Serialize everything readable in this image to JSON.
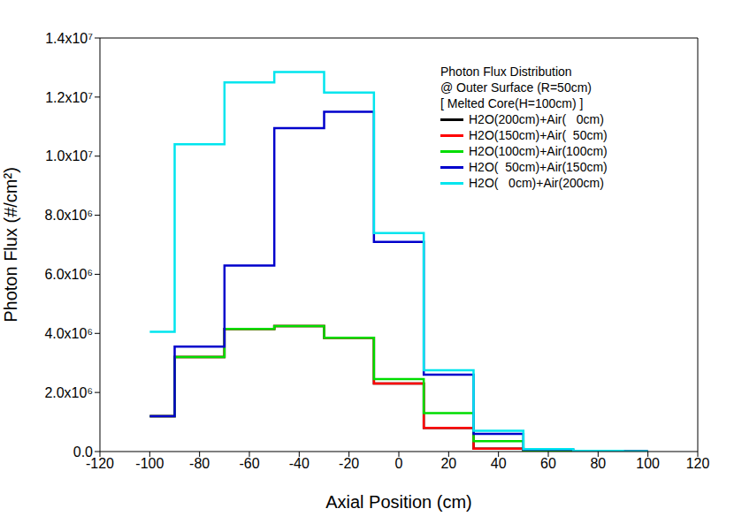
{
  "chart_data": {
    "type": "histogram",
    "line_style": "step",
    "annotations": [
      "Photon Flux Distribution",
      "@ Outer Surface (R=50cm)",
      "[ Melted Core(H=100cm) ]"
    ],
    "x_label": "Axial Position (cm)",
    "y_label": "Photon Flux (#/cm²)",
    "bins": [
      -100,
      -90,
      -70,
      -50,
      -30,
      -10,
      10,
      30,
      50,
      70,
      90,
      100
    ],
    "xlim": [
      -120,
      120
    ],
    "xticks": [
      -120,
      -100,
      -80,
      -60,
      -40,
      -20,
      0,
      20,
      40,
      60,
      80,
      100,
      120
    ],
    "ylim": [
      0,
      14000000
    ],
    "yticks": [
      {
        "value": 0,
        "label": "0.0"
      },
      {
        "value": 2000000,
        "label": "2.0x10⁶"
      },
      {
        "value": 4000000,
        "label": "4.0x10⁶"
      },
      {
        "value": 6000000,
        "label": "6.0x10⁶"
      },
      {
        "value": 8000000,
        "label": "8.0x10⁶"
      },
      {
        "value": 10000000,
        "label": "1.0x10⁷"
      },
      {
        "value": 12000000,
        "label": "1.2x10⁷"
      },
      {
        "value": 14000000,
        "label": "1.4x10⁷"
      }
    ],
    "legend": "upper right",
    "grid": false,
    "series": [
      {
        "name": "H2O(200cm)+Air(   0cm)",
        "color": "#000000",
        "values": [
          1200000,
          3200000,
          4150000,
          4250000,
          3850000,
          2300000,
          800000,
          100000,
          20000,
          5000,
          2000
        ]
      },
      {
        "name": "H2O(150cm)+Air(  50cm)",
        "color": "#ff0000",
        "values": [
          1200000,
          3200000,
          4150000,
          4250000,
          3850000,
          2300000,
          800000,
          100000,
          20000,
          5000,
          2000
        ]
      },
      {
        "name": "H2O(100cm)+Air(100cm)",
        "color": "#00dd00",
        "values": [
          1200000,
          3200000,
          4150000,
          4250000,
          3850000,
          2450000,
          1300000,
          350000,
          30000,
          8000,
          3000
        ]
      },
      {
        "name": "H2O(  50cm)+Air(150cm)",
        "color": "#0000cc",
        "values": [
          1200000,
          3550000,
          6300000,
          10950000,
          11500000,
          7100000,
          2600000,
          600000,
          70000,
          20000,
          10000
        ]
      },
      {
        "name": "H2O(   0cm)+Air(200cm)",
        "color": "#00e5ee",
        "values": [
          4050000,
          10400000,
          12500000,
          12850000,
          12150000,
          7400000,
          2750000,
          700000,
          80000,
          20000,
          10000
        ]
      }
    ]
  }
}
